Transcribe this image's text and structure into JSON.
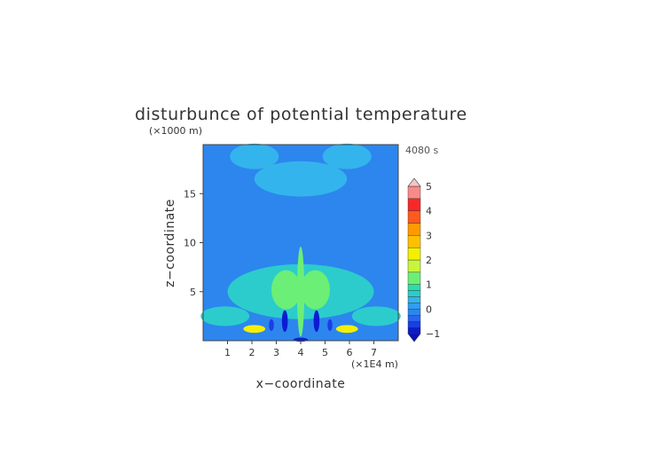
{
  "chart_data": {
    "type": "heatmap",
    "title": "disturbunce of potential temperature",
    "time_label": "4080 s",
    "xlabel": "x−coordinate",
    "ylabel": "z−coordinate",
    "x_unit": "(×1E4 m)",
    "y_unit": "(×1000 m)",
    "xlim": [
      0,
      8
    ],
    "ylim": [
      0,
      20
    ],
    "x_ticks": [
      1,
      2,
      3,
      4,
      5,
      6,
      7
    ],
    "y_ticks": [
      5,
      10,
      15
    ],
    "colorbar": {
      "min": -1,
      "max": 5,
      "tick_values": [
        -1,
        0,
        1,
        2,
        3,
        4,
        5
      ],
      "tick_labels": [
        "−1",
        "0",
        "1",
        "2",
        "3",
        "4",
        "5"
      ],
      "levels": [
        {
          "from": -1.0,
          "to": -0.75,
          "color": "#0a1cd0"
        },
        {
          "from": -0.75,
          "to": -0.5,
          "color": "#1a3ee6"
        },
        {
          "from": -0.5,
          "to": -0.25,
          "color": "#2866f0"
        },
        {
          "from": -0.25,
          "to": 0.0,
          "color": "#2c86ee"
        },
        {
          "from": 0.0,
          "to": 0.25,
          "color": "#2e9ef0"
        },
        {
          "from": 0.25,
          "to": 0.5,
          "color": "#34b4ec"
        },
        {
          "from": 0.5,
          "to": 0.75,
          "color": "#2ccccc"
        },
        {
          "from": 0.75,
          "to": 1.0,
          "color": "#26dfb0"
        },
        {
          "from": 1.0,
          "to": 1.5,
          "color": "#6bef76"
        },
        {
          "from": 1.5,
          "to": 2.0,
          "color": "#c8f53c"
        },
        {
          "from": 2.0,
          "to": 2.5,
          "color": "#f4f000"
        },
        {
          "from": 2.5,
          "to": 3.0,
          "color": "#ffc000"
        },
        {
          "from": 3.0,
          "to": 3.5,
          "color": "#ff9a00"
        },
        {
          "from": 3.5,
          "to": 4.0,
          "color": "#ff5a1e"
        },
        {
          "from": 4.0,
          "to": 4.5,
          "color": "#f82828"
        },
        {
          "from": 4.5,
          "to": 5.0,
          "color": "#f88a8a"
        }
      ],
      "overflow_high_color": "#f6c4c4",
      "underflow_low_color": "#0a10c0"
    },
    "field_features": [
      {
        "x": 4.0,
        "z": 5.0,
        "rx": 3.0,
        "rz": 2.8,
        "value": 0.5
      },
      {
        "x": 4.0,
        "z": 16.5,
        "rx": 1.9,
        "rz": 1.8,
        "value": 0.3
      },
      {
        "x": 2.1,
        "z": 18.8,
        "rx": 1.0,
        "rz": 1.3,
        "value": 0.3
      },
      {
        "x": 5.9,
        "z": 18.8,
        "rx": 1.0,
        "rz": 1.3,
        "value": 0.3
      },
      {
        "x": 0.9,
        "z": 2.5,
        "rx": 1.0,
        "rz": 1.0,
        "value": 0.7
      },
      {
        "x": 7.1,
        "z": 2.5,
        "rx": 1.0,
        "rz": 1.0,
        "value": 0.7
      },
      {
        "x": 3.4,
        "z": 5.2,
        "rx": 0.6,
        "rz": 2.0,
        "value": 1.0
      },
      {
        "x": 4.6,
        "z": 5.2,
        "rx": 0.6,
        "rz": 2.0,
        "value": 1.0
      },
      {
        "x": 2.1,
        "z": 1.2,
        "rx": 0.45,
        "rz": 0.4,
        "value": 2.4
      },
      {
        "x": 5.9,
        "z": 1.2,
        "rx": 0.45,
        "rz": 0.4,
        "value": 2.4
      },
      {
        "x": 4.0,
        "z": 5.0,
        "rx": 0.15,
        "rz": 4.6,
        "value": 1.4
      },
      {
        "x": 3.35,
        "z": 2.0,
        "rx": 0.12,
        "rz": 1.1,
        "value": -0.8
      },
      {
        "x": 4.65,
        "z": 2.0,
        "rx": 0.12,
        "rz": 1.1,
        "value": -0.8
      },
      {
        "x": 2.8,
        "z": 1.6,
        "rx": 0.1,
        "rz": 0.6,
        "value": -0.6
      },
      {
        "x": 5.2,
        "z": 1.6,
        "rx": 0.1,
        "rz": 0.6,
        "value": -0.6
      },
      {
        "x": 4.0,
        "z": 0.1,
        "rx": 0.3,
        "rz": 0.2,
        "value": -0.9
      }
    ]
  }
}
